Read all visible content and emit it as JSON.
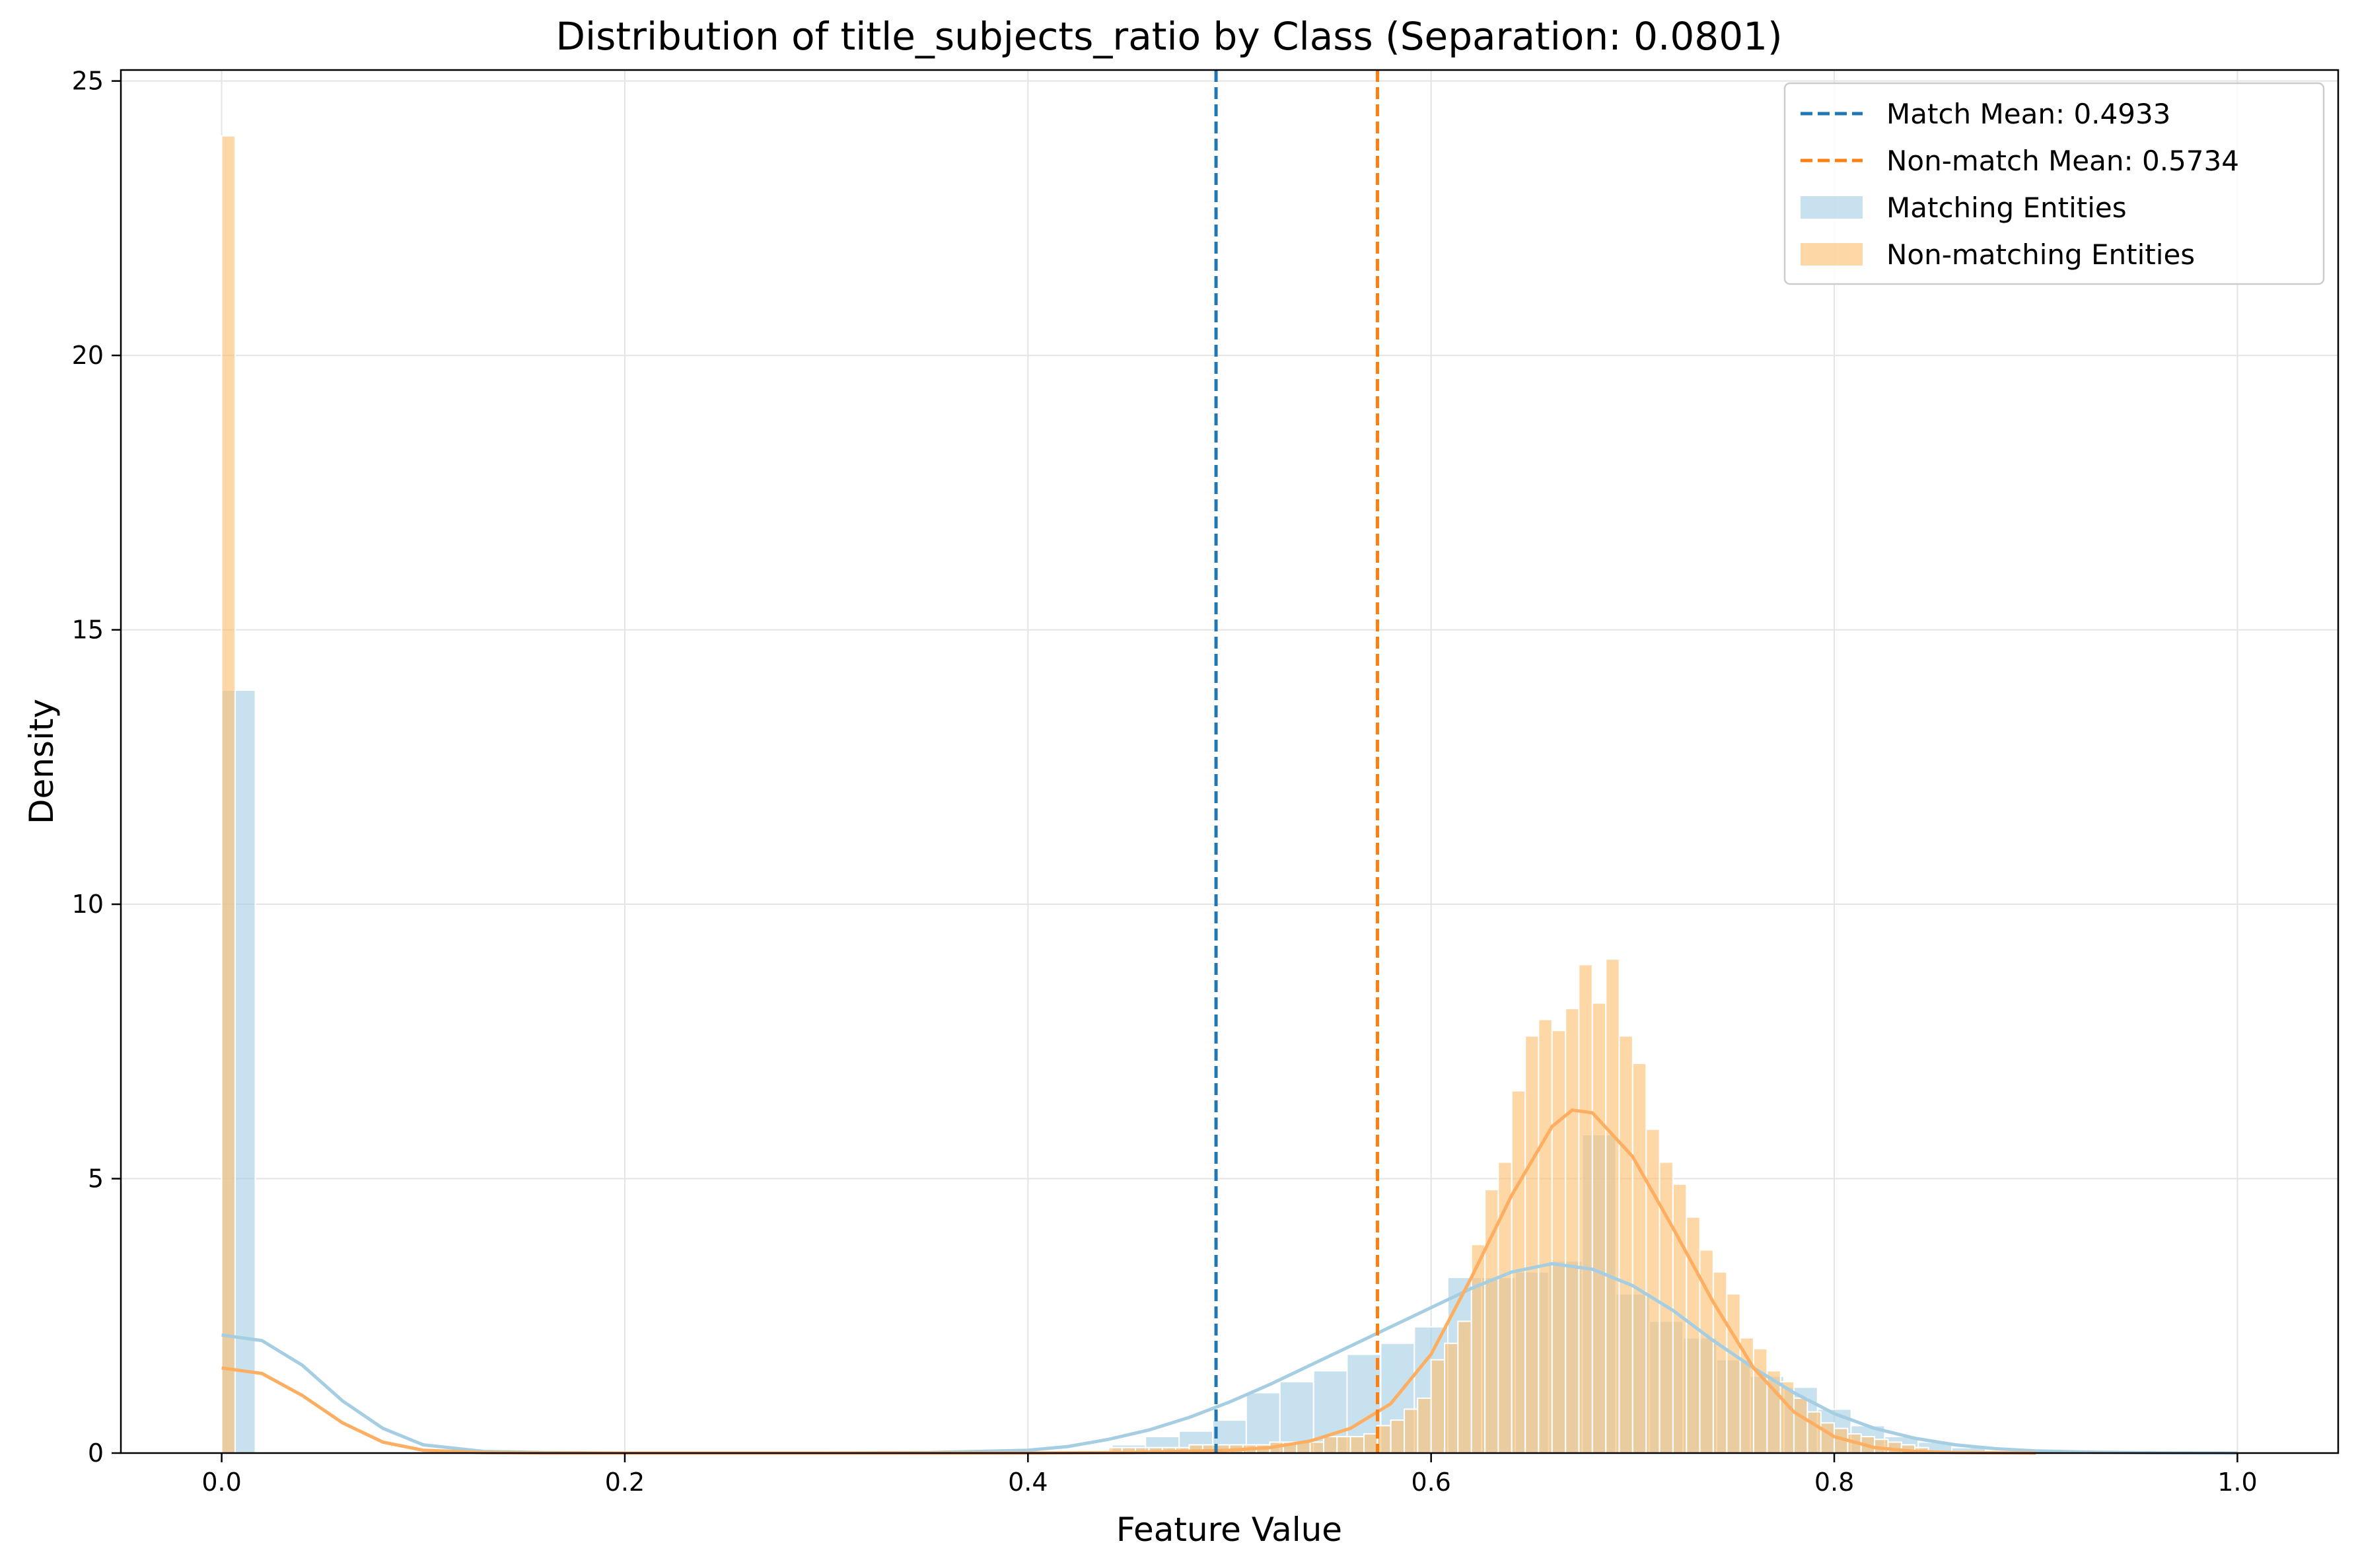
{
  "chart_data": {
    "type": "bar",
    "title": "Distribution of title_subjects_ratio by Class (Separation: 0.0801)",
    "xlabel": "Feature Value",
    "ylabel": "Density",
    "xlim": [
      -0.05,
      1.05
    ],
    "ylim": [
      0,
      25.2
    ],
    "xticks": [
      0.0,
      0.2,
      0.4,
      0.6,
      0.8,
      1.0
    ],
    "xtick_labels": [
      "0.0",
      "0.2",
      "0.4",
      "0.6",
      "0.8",
      "1.0"
    ],
    "yticks": [
      0,
      5,
      10,
      15,
      20,
      25
    ],
    "ytick_labels": [
      "0",
      "5",
      "10",
      "15",
      "20",
      "25"
    ],
    "grid": true,
    "legend_position": "top-right",
    "colors": {
      "match_mean_line": "#1f77b4",
      "nonmatch_mean_line": "#ff7f0e",
      "match_hist": "#a6cee3",
      "nonmatch_hist": "#fdbf6f",
      "match_kde": "#a6cee3",
      "nonmatch_kde": "#fdae61"
    },
    "mean_lines": [
      {
        "name": "Match Mean: 0.4933",
        "x": 0.4933,
        "color": "#1f77b4"
      },
      {
        "name": "Non-match Mean: 0.5734",
        "x": 0.5734,
        "color": "#ff7f0e"
      }
    ],
    "series": [
      {
        "name": "Matching Entities",
        "kind": "histogram",
        "bin_width": 0.0167,
        "bins": [
          [
            0.0,
            13.9
          ],
          [
            0.4417,
            0.15
          ],
          [
            0.4583,
            0.3
          ],
          [
            0.475,
            0.4
          ],
          [
            0.4917,
            0.6
          ],
          [
            0.5083,
            1.1
          ],
          [
            0.525,
            1.3
          ],
          [
            0.5417,
            1.5
          ],
          [
            0.5583,
            1.8
          ],
          [
            0.575,
            2.0
          ],
          [
            0.5917,
            2.3
          ],
          [
            0.6083,
            3.2
          ],
          [
            0.625,
            3.2
          ],
          [
            0.6417,
            3.3
          ],
          [
            0.6583,
            3.5
          ],
          [
            0.675,
            5.8
          ],
          [
            0.6917,
            2.9
          ],
          [
            0.7083,
            2.4
          ],
          [
            0.725,
            2.1
          ],
          [
            0.7417,
            1.7
          ],
          [
            0.7583,
            1.4
          ],
          [
            0.775,
            1.2
          ],
          [
            0.7917,
            0.8
          ],
          [
            0.8083,
            0.5
          ],
          [
            0.825,
            0.3
          ],
          [
            0.8417,
            0.2
          ],
          [
            0.8583,
            0.1
          ]
        ]
      },
      {
        "name": "Non-matching Entities",
        "kind": "histogram",
        "bin_width": 0.00667,
        "bins": [
          [
            0.0,
            24.0
          ],
          [
            0.44,
            0.1
          ],
          [
            0.4467,
            0.1
          ],
          [
            0.4533,
            0.1
          ],
          [
            0.46,
            0.1
          ],
          [
            0.4667,
            0.1
          ],
          [
            0.4733,
            0.1
          ],
          [
            0.48,
            0.15
          ],
          [
            0.4867,
            0.15
          ],
          [
            0.4933,
            0.15
          ],
          [
            0.5,
            0.15
          ],
          [
            0.5067,
            0.15
          ],
          [
            0.5133,
            0.15
          ],
          [
            0.52,
            0.2
          ],
          [
            0.5267,
            0.2
          ],
          [
            0.5333,
            0.2
          ],
          [
            0.54,
            0.2
          ],
          [
            0.5467,
            0.3
          ],
          [
            0.5533,
            0.3
          ],
          [
            0.56,
            0.3
          ],
          [
            0.5667,
            0.35
          ],
          [
            0.5733,
            0.5
          ],
          [
            0.58,
            0.6
          ],
          [
            0.5867,
            0.8
          ],
          [
            0.5933,
            1.0
          ],
          [
            0.6,
            1.7
          ],
          [
            0.6067,
            2.0
          ],
          [
            0.6133,
            2.4
          ],
          [
            0.62,
            3.8
          ],
          [
            0.6267,
            4.8
          ],
          [
            0.6333,
            5.3
          ],
          [
            0.64,
            6.6
          ],
          [
            0.6467,
            7.6
          ],
          [
            0.6533,
            7.9
          ],
          [
            0.66,
            7.7
          ],
          [
            0.6667,
            8.1
          ],
          [
            0.6733,
            8.9
          ],
          [
            0.68,
            8.2
          ],
          [
            0.6867,
            9.0
          ],
          [
            0.6933,
            7.6
          ],
          [
            0.7,
            7.1
          ],
          [
            0.7067,
            5.9
          ],
          [
            0.7133,
            5.3
          ],
          [
            0.72,
            4.9
          ],
          [
            0.7267,
            4.3
          ],
          [
            0.7333,
            3.7
          ],
          [
            0.74,
            3.3
          ],
          [
            0.7467,
            2.9
          ],
          [
            0.7533,
            2.1
          ],
          [
            0.76,
            1.9
          ],
          [
            0.7667,
            1.5
          ],
          [
            0.7733,
            1.3
          ],
          [
            0.78,
            1.0
          ],
          [
            0.7867,
            0.75
          ],
          [
            0.7933,
            0.55
          ],
          [
            0.8,
            0.45
          ],
          [
            0.8067,
            0.35
          ],
          [
            0.8133,
            0.3
          ],
          [
            0.82,
            0.25
          ],
          [
            0.8267,
            0.2
          ],
          [
            0.8333,
            0.15
          ],
          [
            0.84,
            0.1
          ]
        ]
      }
    ],
    "kde": [
      {
        "series": "Matching Entities",
        "color": "#a6cee3",
        "x": [
          0.0,
          0.02,
          0.04,
          0.06,
          0.08,
          0.1,
          0.13,
          0.16,
          0.2,
          0.25,
          0.3,
          0.35,
          0.4,
          0.42,
          0.44,
          0.46,
          0.48,
          0.5,
          0.52,
          0.54,
          0.56,
          0.58,
          0.6,
          0.62,
          0.64,
          0.66,
          0.68,
          0.7,
          0.72,
          0.74,
          0.76,
          0.78,
          0.8,
          0.82,
          0.84,
          0.86,
          0.88,
          0.9,
          0.93,
          0.96,
          1.0
        ],
        "y": [
          2.15,
          2.05,
          1.6,
          0.95,
          0.45,
          0.15,
          0.03,
          0.01,
          0.0,
          0.0,
          0.0,
          0.01,
          0.05,
          0.12,
          0.25,
          0.42,
          0.65,
          0.93,
          1.25,
          1.6,
          1.95,
          2.3,
          2.65,
          3.0,
          3.3,
          3.45,
          3.35,
          3.05,
          2.6,
          2.05,
          1.55,
          1.1,
          0.72,
          0.45,
          0.27,
          0.15,
          0.08,
          0.04,
          0.015,
          0.005,
          0.0
        ]
      },
      {
        "series": "Non-matching Entities",
        "color": "#fdae61",
        "x": [
          0.0,
          0.02,
          0.04,
          0.06,
          0.08,
          0.1,
          0.13,
          0.16,
          0.2,
          0.3,
          0.4,
          0.45,
          0.5,
          0.52,
          0.54,
          0.56,
          0.58,
          0.6,
          0.62,
          0.64,
          0.66,
          0.67,
          0.68,
          0.7,
          0.72,
          0.74,
          0.76,
          0.78,
          0.8,
          0.82,
          0.84,
          0.86,
          0.9
        ],
        "y": [
          1.55,
          1.45,
          1.05,
          0.55,
          0.2,
          0.05,
          0.01,
          0.0,
          0.0,
          0.0,
          0.0,
          0.01,
          0.05,
          0.1,
          0.22,
          0.45,
          0.9,
          1.8,
          3.2,
          4.7,
          5.95,
          6.25,
          6.2,
          5.4,
          4.1,
          2.75,
          1.55,
          0.75,
          0.3,
          0.1,
          0.03,
          0.01,
          0.0
        ]
      }
    ],
    "legend": [
      {
        "label": "Match Mean: 0.4933",
        "kind": "dashed-line",
        "color": "#1f77b4"
      },
      {
        "label": "Non-match Mean: 0.5734",
        "kind": "dashed-line",
        "color": "#ff7f0e"
      },
      {
        "label": "Matching Entities",
        "kind": "patch",
        "color": "#a6cee3"
      },
      {
        "label": "Non-matching Entities",
        "kind": "patch",
        "color": "#fdbf6f"
      }
    ]
  }
}
